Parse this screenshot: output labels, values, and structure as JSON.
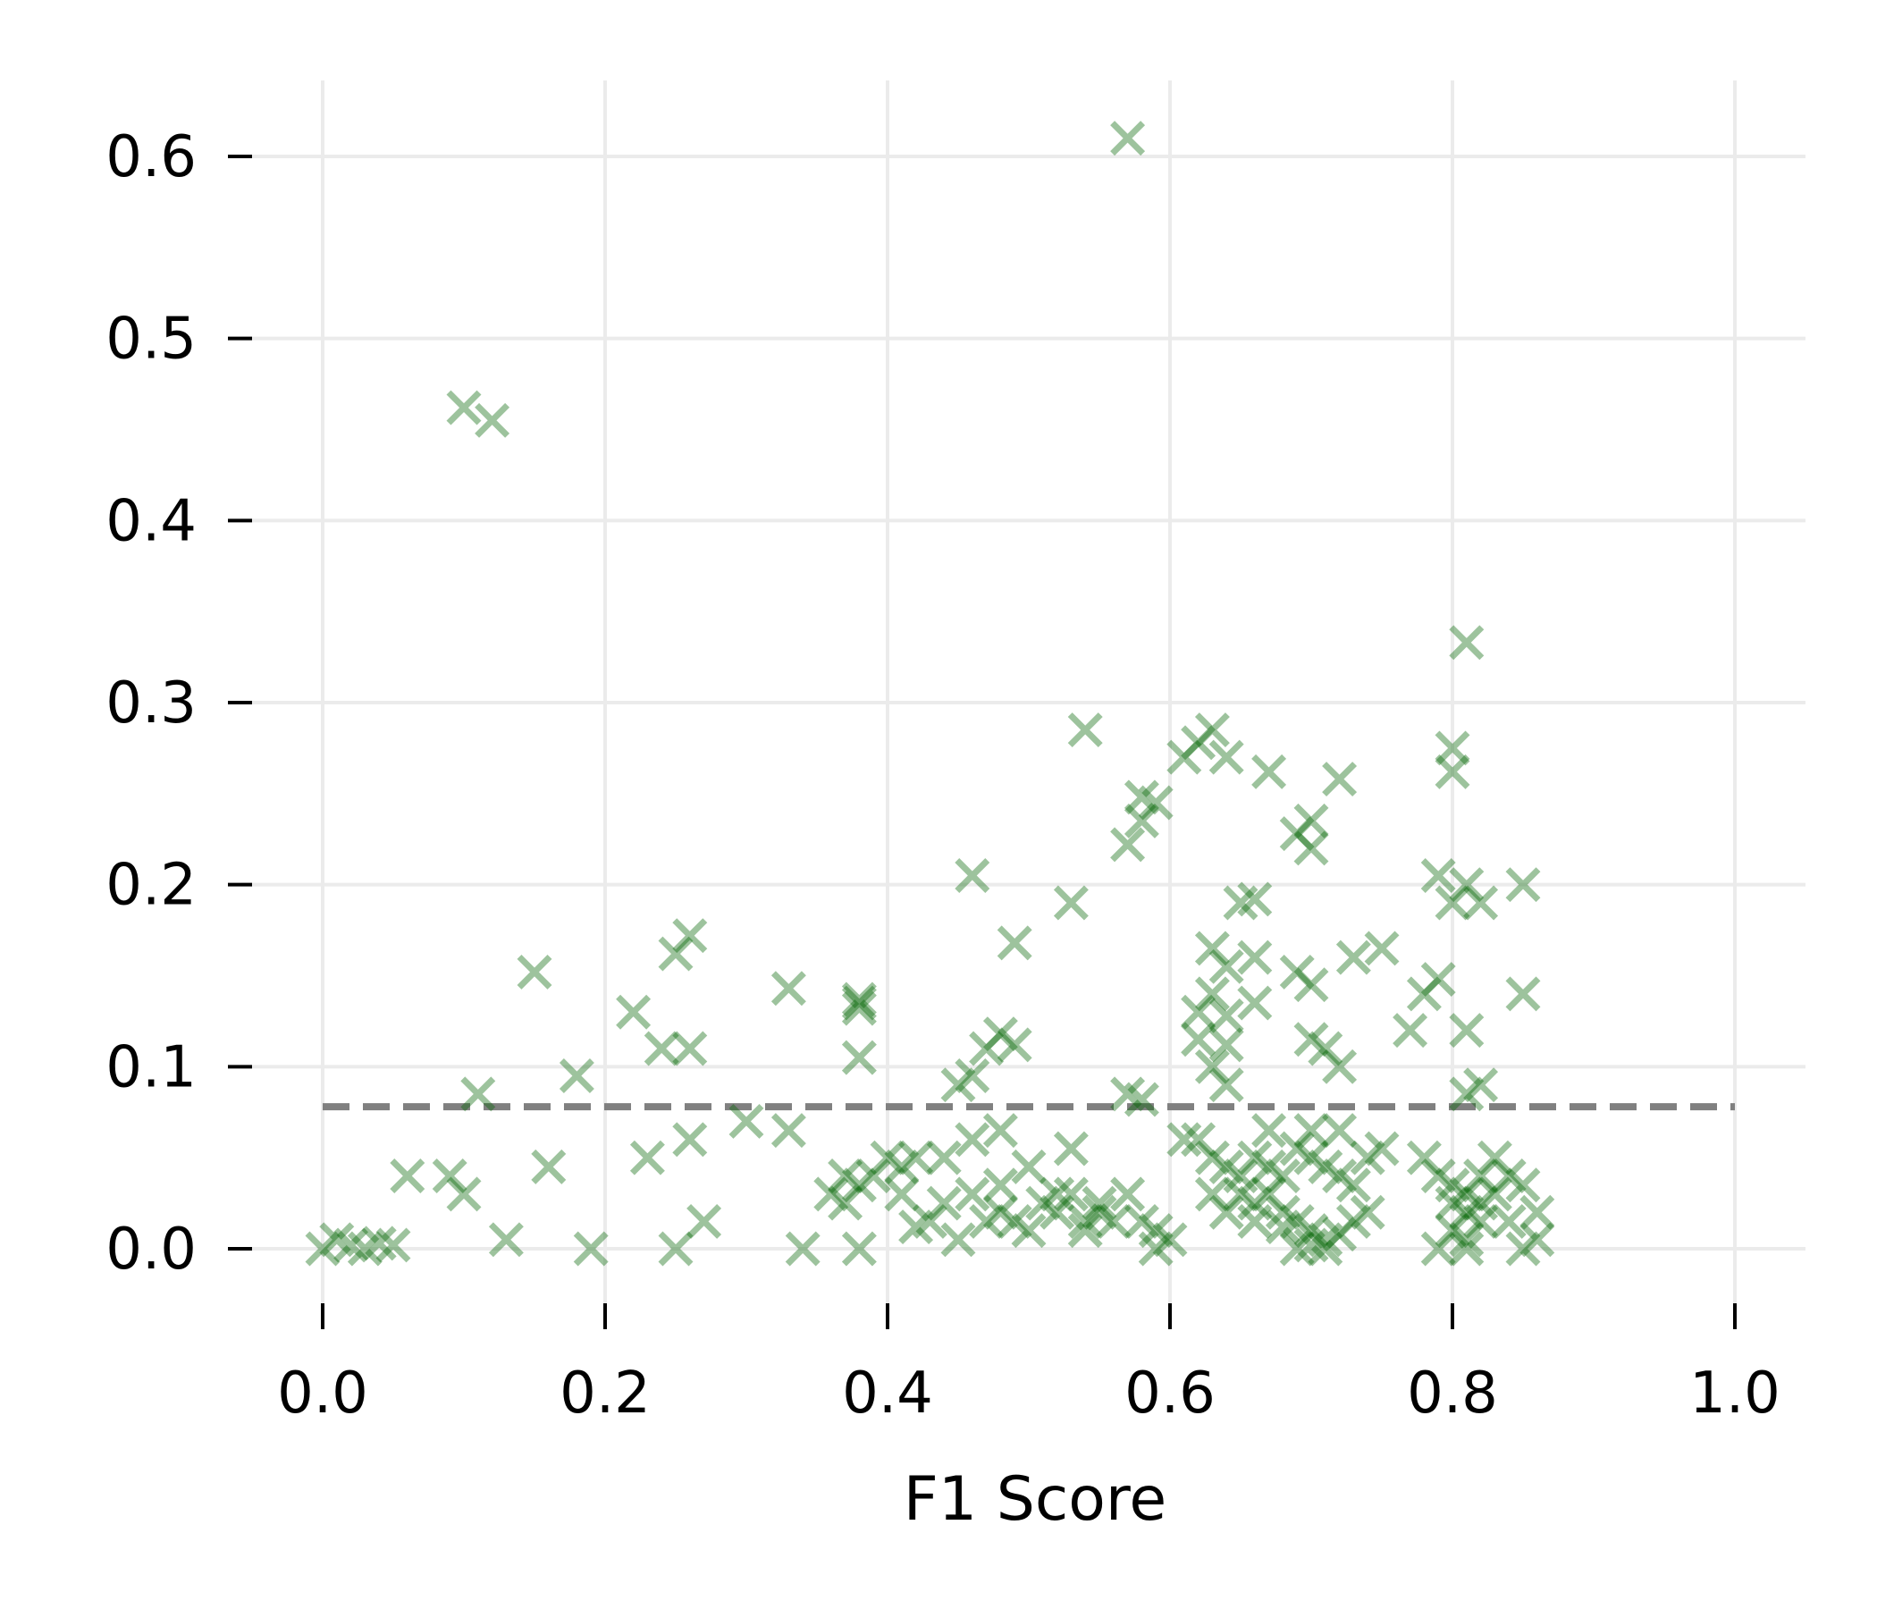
{
  "chart_data": {
    "type": "scatter",
    "xlabel": "F1 Score",
    "ylabel": "",
    "xlim": [
      -0.05,
      1.05
    ],
    "ylim": [
      -0.04,
      0.645
    ],
    "xticks": [
      "0.0",
      "0.2",
      "0.4",
      "0.6",
      "0.8",
      "1.0"
    ],
    "yticks": [
      "0.0",
      "0.1",
      "0.2",
      "0.3",
      "0.4",
      "0.5",
      "0.6"
    ],
    "grid": true,
    "marker": "x",
    "marker_color": "#006400",
    "reference_line": {
      "y": 0.078,
      "x_from": 0.0,
      "x_to": 1.0,
      "style": "dashed",
      "color": "#808080"
    },
    "series": [
      {
        "points": [
          [
            0.57,
            0.61
          ],
          [
            0.1,
            0.462
          ],
          [
            0.12,
            0.455
          ],
          [
            0.81,
            0.333
          ],
          [
            0.54,
            0.285
          ],
          [
            0.63,
            0.285
          ],
          [
            0.61,
            0.27
          ],
          [
            0.62,
            0.278
          ],
          [
            0.64,
            0.27
          ],
          [
            0.67,
            0.262
          ],
          [
            0.72,
            0.258
          ],
          [
            0.8,
            0.275
          ],
          [
            0.8,
            0.262
          ],
          [
            0.58,
            0.248
          ],
          [
            0.59,
            0.245
          ],
          [
            0.58,
            0.235
          ],
          [
            0.57,
            0.222
          ],
          [
            0.7,
            0.235
          ],
          [
            0.69,
            0.228
          ],
          [
            0.7,
            0.22
          ],
          [
            0.46,
            0.205
          ],
          [
            0.53,
            0.19
          ],
          [
            0.79,
            0.205
          ],
          [
            0.81,
            0.2
          ],
          [
            0.85,
            0.2
          ],
          [
            0.82,
            0.19
          ],
          [
            0.8,
            0.19
          ],
          [
            0.66,
            0.192
          ],
          [
            0.65,
            0.19
          ],
          [
            0.49,
            0.168
          ],
          [
            0.26,
            0.172
          ],
          [
            0.25,
            0.162
          ],
          [
            0.15,
            0.152
          ],
          [
            0.33,
            0.143
          ],
          [
            0.38,
            0.137
          ],
          [
            0.38,
            0.135
          ],
          [
            0.38,
            0.132
          ],
          [
            0.63,
            0.165
          ],
          [
            0.64,
            0.155
          ],
          [
            0.66,
            0.16
          ],
          [
            0.69,
            0.152
          ],
          [
            0.7,
            0.145
          ],
          [
            0.73,
            0.16
          ],
          [
            0.75,
            0.165
          ],
          [
            0.78,
            0.14
          ],
          [
            0.79,
            0.148
          ],
          [
            0.85,
            0.14
          ],
          [
            0.63,
            0.14
          ],
          [
            0.62,
            0.13
          ],
          [
            0.64,
            0.128
          ],
          [
            0.66,
            0.135
          ],
          [
            0.62,
            0.115
          ],
          [
            0.64,
            0.112
          ],
          [
            0.7,
            0.115
          ],
          [
            0.71,
            0.11
          ],
          [
            0.77,
            0.12
          ],
          [
            0.81,
            0.12
          ],
          [
            0.22,
            0.13
          ],
          [
            0.24,
            0.11
          ],
          [
            0.26,
            0.11
          ],
          [
            0.48,
            0.118
          ],
          [
            0.49,
            0.112
          ],
          [
            0.47,
            0.11
          ],
          [
            0.38,
            0.105
          ],
          [
            0.18,
            0.095
          ],
          [
            0.11,
            0.085
          ],
          [
            0.46,
            0.095
          ],
          [
            0.45,
            0.09
          ],
          [
            0.57,
            0.085
          ],
          [
            0.58,
            0.082
          ],
          [
            0.81,
            0.085
          ],
          [
            0.3,
            0.07
          ],
          [
            0.33,
            0.065
          ],
          [
            0.26,
            0.06
          ],
          [
            0.23,
            0.05
          ],
          [
            0.16,
            0.045
          ],
          [
            0.06,
            0.04
          ],
          [
            0.09,
            0.04
          ],
          [
            0.1,
            0.03
          ],
          [
            0.37,
            0.04
          ],
          [
            0.38,
            0.035
          ],
          [
            0.39,
            0.04
          ],
          [
            0.41,
            0.045
          ],
          [
            0.44,
            0.05
          ],
          [
            0.46,
            0.06
          ],
          [
            0.48,
            0.065
          ],
          [
            0.5,
            0.045
          ],
          [
            0.53,
            0.055
          ],
          [
            0.52,
            0.03
          ],
          [
            0.51,
            0.025
          ],
          [
            0.53,
            0.03
          ],
          [
            0.55,
            0.025
          ],
          [
            0.48,
            0.02
          ],
          [
            0.49,
            0.015
          ],
          [
            0.5,
            0.01
          ],
          [
            0.47,
            0.015
          ],
          [
            0.56,
            0.015
          ],
          [
            0.54,
            0.01
          ],
          [
            0.62,
            0.06
          ],
          [
            0.63,
            0.05
          ],
          [
            0.64,
            0.045
          ],
          [
            0.65,
            0.04
          ],
          [
            0.66,
            0.05
          ],
          [
            0.67,
            0.045
          ],
          [
            0.68,
            0.04
          ],
          [
            0.69,
            0.055
          ],
          [
            0.7,
            0.05
          ],
          [
            0.71,
            0.045
          ],
          [
            0.72,
            0.04
          ],
          [
            0.73,
            0.035
          ],
          [
            0.65,
            0.03
          ],
          [
            0.66,
            0.025
          ],
          [
            0.67,
            0.03
          ],
          [
            0.68,
            0.02
          ],
          [
            0.69,
            0.015
          ],
          [
            0.7,
            0.01
          ],
          [
            0.71,
            0.005
          ],
          [
            0.72,
            0.008
          ],
          [
            0.69,
            0.0
          ],
          [
            0.7,
            0.002
          ],
          [
            0.71,
            0.0
          ],
          [
            0.68,
            0.012
          ],
          [
            0.73,
            0.015
          ],
          [
            0.74,
            0.02
          ],
          [
            0.66,
            0.015
          ],
          [
            0.64,
            0.02
          ],
          [
            0.63,
            0.03
          ],
          [
            0.78,
            0.05
          ],
          [
            0.79,
            0.04
          ],
          [
            0.8,
            0.035
          ],
          [
            0.81,
            0.03
          ],
          [
            0.82,
            0.04
          ],
          [
            0.83,
            0.05
          ],
          [
            0.84,
            0.04
          ],
          [
            0.85,
            0.035
          ],
          [
            0.8,
            0.025
          ],
          [
            0.81,
            0.02
          ],
          [
            0.82,
            0.015
          ],
          [
            0.8,
            0.01
          ],
          [
            0.81,
            0.005
          ],
          [
            0.79,
            0.0
          ],
          [
            0.81,
            0.0
          ],
          [
            0.85,
            0.0
          ],
          [
            0.86,
            0.005
          ],
          [
            0.84,
            0.015
          ],
          [
            0.86,
            0.02
          ],
          [
            0.82,
            0.025
          ],
          [
            0.83,
            0.03
          ],
          [
            0.59,
            0.01
          ],
          [
            0.6,
            0.005
          ],
          [
            0.59,
            0.0
          ],
          [
            0.42,
            0.012
          ],
          [
            0.43,
            0.015
          ],
          [
            0.45,
            0.005
          ],
          [
            0.25,
            0.0
          ],
          [
            0.27,
            0.015
          ],
          [
            0.19,
            0.0
          ],
          [
            0.13,
            0.005
          ],
          [
            0.0,
            0.0
          ],
          [
            0.01,
            0.005
          ],
          [
            0.02,
            0.002
          ],
          [
            0.03,
            0.0
          ],
          [
            0.04,
            0.003
          ],
          [
            0.05,
            0.002
          ],
          [
            0.34,
            0.0
          ],
          [
            0.38,
            0.0
          ],
          [
            0.55,
            0.02
          ],
          [
            0.58,
            0.015
          ],
          [
            0.61,
            0.06
          ],
          [
            0.7,
            0.065
          ],
          [
            0.72,
            0.065
          ],
          [
            0.67,
            0.065
          ],
          [
            0.75,
            0.055
          ],
          [
            0.74,
            0.05
          ],
          [
            0.42,
            0.05
          ],
          [
            0.4,
            0.05
          ],
          [
            0.36,
            0.03
          ],
          [
            0.37,
            0.025
          ],
          [
            0.41,
            0.03
          ],
          [
            0.44,
            0.025
          ],
          [
            0.46,
            0.03
          ],
          [
            0.48,
            0.035
          ],
          [
            0.52,
            0.02
          ],
          [
            0.54,
            0.015
          ],
          [
            0.57,
            0.03
          ],
          [
            0.64,
            0.09
          ],
          [
            0.63,
            0.1
          ],
          [
            0.72,
            0.1
          ],
          [
            0.82,
            0.09
          ]
        ]
      }
    ]
  }
}
